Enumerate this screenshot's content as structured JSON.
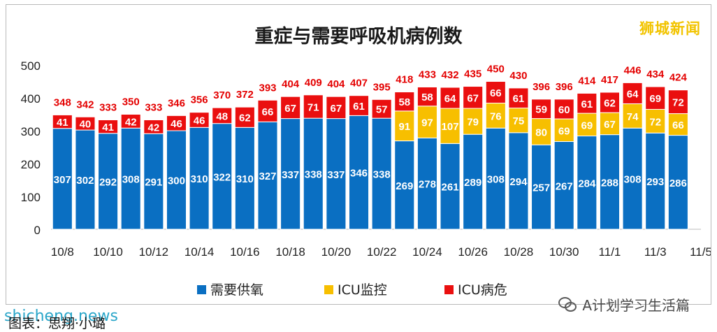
{
  "brand": "狮城新闻",
  "watermark_left": "shicheng.news",
  "watermark_right": "A计划学习生活篇",
  "caption": "图表：思翔·小璐",
  "colors": {
    "oxygen": "#0a6fc2",
    "icu_monitor": "#f7bf00",
    "icu_critical": "#ea0f0f",
    "total_label": "#e40000"
  },
  "chart_data": {
    "type": "bar",
    "stacked": true,
    "title": "重症与需要呼吸机病例数",
    "xlabel": "",
    "ylabel": "",
    "ylim": [
      0,
      500
    ],
    "yticks": [
      0,
      100,
      200,
      300,
      400,
      500
    ],
    "grid": false,
    "legend_position": "bottom",
    "categories": [
      "10/8",
      "10/9",
      "10/10",
      "10/11",
      "10/12",
      "10/13",
      "10/14",
      "10/15",
      "10/16",
      "10/17",
      "10/18",
      "10/19",
      "10/20",
      "10/21",
      "10/22",
      "10/23",
      "10/24",
      "10/25",
      "10/26",
      "10/27",
      "10/28",
      "10/29",
      "10/30",
      "10/31",
      "11/1",
      "11/2",
      "11/3",
      "11/4"
    ],
    "x_tick_labels": [
      "10/8",
      "10/10",
      "10/12",
      "10/14",
      "10/16",
      "10/18",
      "10/20",
      "10/22",
      "10/24",
      "10/26",
      "10/28",
      "10/30",
      "11/1",
      "11/3",
      "11/5"
    ],
    "series": [
      {
        "name": "需要供氧",
        "color": "#0a6fc2",
        "values": [
          307,
          302,
          292,
          308,
          291,
          300,
          310,
          322,
          310,
          327,
          337,
          338,
          337,
          346,
          338,
          269,
          278,
          261,
          289,
          308,
          294,
          257,
          267,
          284,
          288,
          308,
          293,
          286
        ]
      },
      {
        "name": "ICU监控",
        "color": "#f7bf00",
        "values": [
          0,
          0,
          0,
          0,
          0,
          0,
          0,
          0,
          0,
          0,
          0,
          0,
          0,
          0,
          0,
          91,
          97,
          107,
          79,
          76,
          75,
          80,
          69,
          69,
          67,
          74,
          72,
          66
        ]
      },
      {
        "name": "ICU病危",
        "color": "#ea0f0f",
        "values": [
          41,
          40,
          41,
          42,
          42,
          46,
          46,
          48,
          62,
          66,
          67,
          71,
          67,
          61,
          57,
          58,
          58,
          64,
          67,
          66,
          61,
          59,
          60,
          61,
          62,
          64,
          69,
          72
        ]
      }
    ],
    "totals": [
      348,
      342,
      333,
      350,
      333,
      346,
      356,
      370,
      372,
      393,
      404,
      409,
      404,
      407,
      395,
      418,
      433,
      432,
      435,
      450,
      430,
      396,
      396,
      414,
      417,
      446,
      434,
      424
    ]
  }
}
